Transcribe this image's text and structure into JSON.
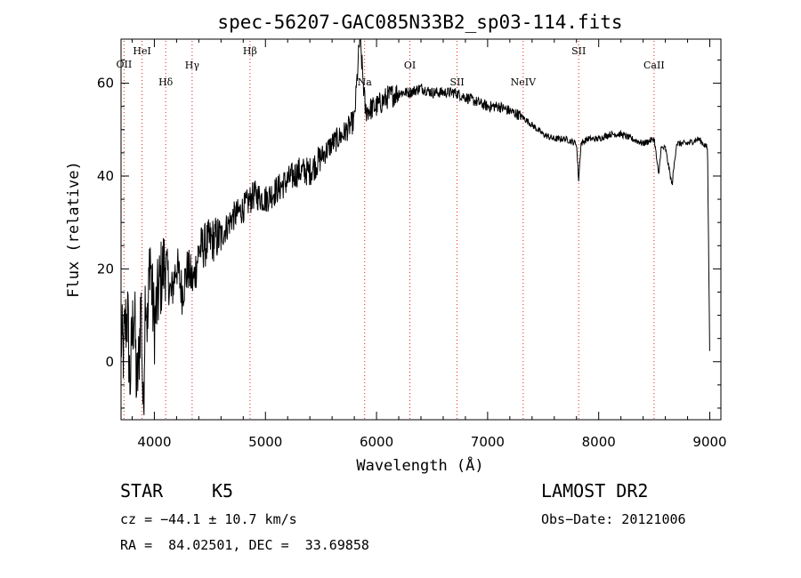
{
  "chart_data": {
    "type": "line",
    "title": "spec-56207-GAC085N33B2_sp03-114.fits",
    "xlabel": "Wavelength (Å)",
    "ylabel": "Flux (relative)",
    "xlim": [
      3700,
      9100
    ],
    "ylim": [
      -12.5,
      69.5
    ],
    "xticks": [
      4000,
      5000,
      6000,
      7000,
      8000,
      9000
    ],
    "yticks": [
      0,
      20,
      40,
      60
    ],
    "grid": false,
    "series": [
      {
        "x": [
          3700,
          3720,
          3740,
          3760,
          3780,
          3800,
          3820,
          3840,
          3860,
          3880,
          3900,
          3920,
          3940,
          3960,
          3980,
          4000,
          4050,
          4100,
          4150,
          4200,
          4250,
          4300,
          4350,
          4400,
          4500,
          4600,
          4700,
          4800,
          4900,
          5000,
          5100,
          5200,
          5300,
          5400,
          5500,
          5600,
          5700,
          5800,
          5850,
          5900,
          6000,
          6100,
          6200,
          6300,
          6400,
          6500,
          6600,
          6700,
          6800,
          6900,
          7000,
          7100,
          7200,
          7300,
          7400,
          7500,
          7600,
          7700,
          7800,
          7820,
          7840,
          7900,
          8000,
          8100,
          8200,
          8300,
          8400,
          8500,
          8540,
          8560,
          8600,
          8660,
          8700,
          8800,
          8900,
          8980,
          9000
        ],
        "y": [
          5,
          2,
          8,
          10,
          -5,
          6,
          12,
          -6,
          0,
          14,
          -13,
          18,
          6,
          25,
          14,
          8,
          17,
          22,
          14,
          21,
          15,
          20,
          17,
          24,
          26,
          27,
          31,
          33,
          36,
          35,
          37,
          39,
          41,
          41,
          44,
          47,
          49,
          52,
          70,
          54,
          55,
          57,
          58,
          58,
          59,
          58,
          58,
          58,
          57,
          56,
          55,
          55,
          54,
          53,
          51,
          49,
          48,
          48,
          47,
          39,
          47,
          48,
          48,
          49,
          49,
          48,
          47,
          48,
          40,
          46,
          46,
          38,
          47,
          47,
          48,
          46,
          0
        ]
      }
    ],
    "line_markers": [
      {
        "label": "OII",
        "x": 3727
      },
      {
        "label": "HeI",
        "x": 3889
      },
      {
        "label": "Hδ",
        "x": 4102
      },
      {
        "label": "Hγ",
        "x": 4340
      },
      {
        "label": "Hβ",
        "x": 4861
      },
      {
        "label": "Na",
        "x": 5893
      },
      {
        "label": "OI",
        "x": 6300
      },
      {
        "label": "SII",
        "x": 6725
      },
      {
        "label": "NeIV",
        "x": 7320
      },
      {
        "label": "SII",
        "x": 7820
      },
      {
        "label": "CaII",
        "x": 8498
      }
    ],
    "marker_color": "#e0201c",
    "line_color": "#000000"
  },
  "info": {
    "object_type": "STAR",
    "subclass": "K5",
    "survey": "LAMOST DR2",
    "redshift": "cz = −44.1 ± 10.7 km/s",
    "obs_date": "Obs−Date: 20121006",
    "coords": "RA =  84.02501, DEC =  33.69858"
  }
}
